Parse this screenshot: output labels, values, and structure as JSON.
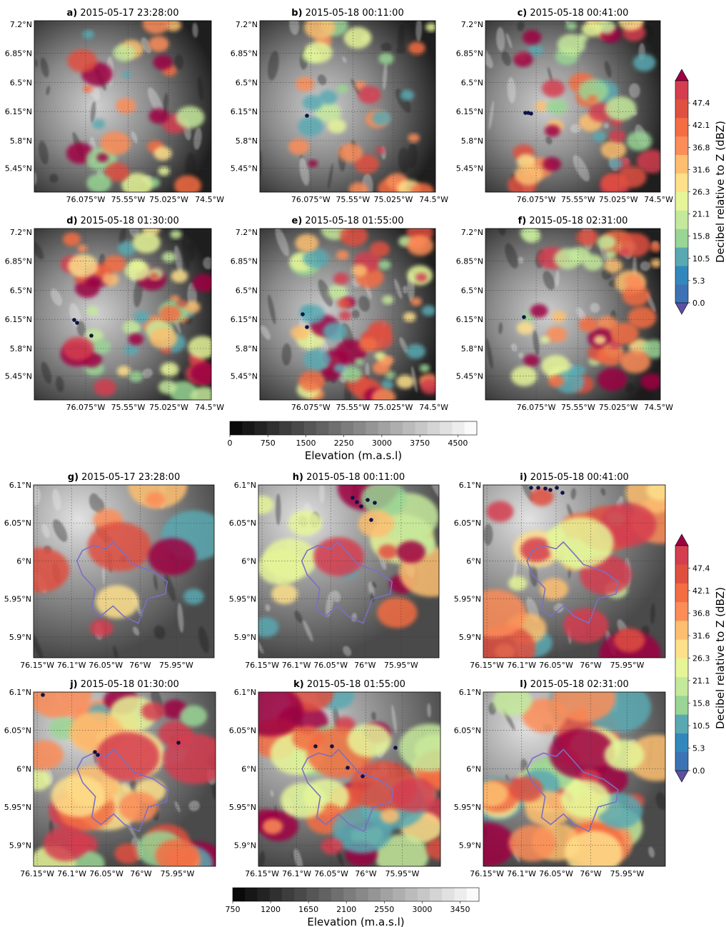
{
  "figure": {
    "panels": [
      {
        "letter": "a)",
        "time": "2015-05-17 23:28:00",
        "group": "top"
      },
      {
        "letter": "b)",
        "time": "2015-05-18 00:11:00",
        "group": "top"
      },
      {
        "letter": "c)",
        "time": "2015-05-18 00:41:00",
        "group": "top"
      },
      {
        "letter": "d)",
        "time": "2015-05-18 01:30:00",
        "group": "top"
      },
      {
        "letter": "e)",
        "time": "2015-05-18 01:55:00",
        "group": "top"
      },
      {
        "letter": "f)",
        "time": "2015-05-18 02:31:00",
        "group": "top"
      },
      {
        "letter": "g)",
        "time": "2015-05-17 23:28:00",
        "group": "bottom"
      },
      {
        "letter": "h)",
        "time": "2015-05-18 00:11:00",
        "group": "bottom"
      },
      {
        "letter": "i)",
        "time": "2015-05-18 00:41:00",
        "group": "bottom"
      },
      {
        "letter": "j)",
        "time": "2015-05-18 01:30:00",
        "group": "bottom"
      },
      {
        "letter": "k)",
        "time": "2015-05-18 01:55:00",
        "group": "bottom"
      },
      {
        "letter": "l)",
        "time": "2015-05-18 02:31:00",
        "group": "bottom"
      }
    ],
    "top_axes": {
      "lat_ticks": [
        "7.2°N",
        "6.85°N",
        "6.5°N",
        "6.15°N",
        "5.8°N",
        "5.45°N"
      ],
      "lon_ticks": [
        "76.075°W",
        "75.55°W",
        "75.025°W",
        "74.5°W"
      ]
    },
    "bottom_axes": {
      "lat_ticks": [
        "6.1°N",
        "6.05°N",
        "6°N",
        "5.95°N",
        "5.9°N"
      ],
      "lon_ticks": [
        "76.15°W",
        "76.1°W",
        "76.05°W",
        "76°W",
        "75.95°W"
      ]
    },
    "reflectivity_colorbar": {
      "label": "Decibel relative to Z (dBZ)",
      "ticks": [
        "0.0",
        "5.3",
        "10.5",
        "15.8",
        "21.1",
        "26.3",
        "31.6",
        "36.8",
        "42.1",
        "47.4"
      ],
      "colors": [
        "#5e4fa2",
        "#3d73b5",
        "#3288bd",
        "#5aa9b2",
        "#99d594",
        "#c5e99b",
        "#e6f598",
        "#fee08b",
        "#fdbf6f",
        "#fc8d59",
        "#f46d43",
        "#e0503f",
        "#d53e4f",
        "#9e0142"
      ]
    },
    "elevation_colorbar_top": {
      "label": "Elevation (m.a.s.l)",
      "ticks": [
        "0",
        "750",
        "1500",
        "2250",
        "3000",
        "3750",
        "4500"
      ]
    },
    "elevation_colorbar_bottom": {
      "label": "Elevation (m.a.s.l)",
      "ticks": [
        "750",
        "1200",
        "1650",
        "2100",
        "2550",
        "3000",
        "3450"
      ]
    }
  }
}
